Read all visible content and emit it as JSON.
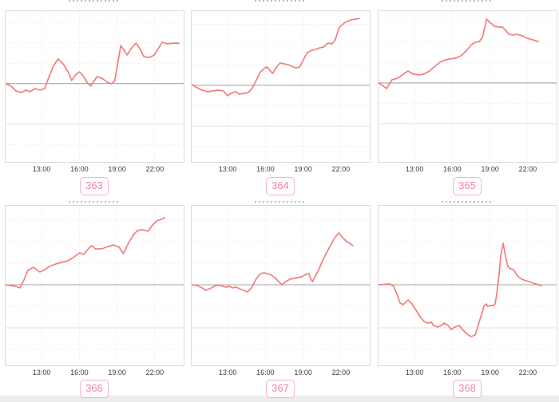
{
  "colors": {
    "line": "#f47d7d",
    "zero_line": "#a3a3a3",
    "grid": "#e9e9e9",
    "grid_solid": "#e2e2e2",
    "plot_border": "#dcdcdc",
    "tick_label": "#3b3b3b",
    "badge_text": "#ee86a4",
    "badge_border": "#f4b3c6",
    "bottom_strip": "#ececec"
  },
  "x_ticks": {
    "labels": [
      "13:00",
      "16:00",
      "19:00",
      "22:00"
    ],
    "positions_pct": [
      20.5,
      41.5,
      62.5,
      83.5
    ]
  },
  "chart_data": [
    {
      "type": "line",
      "badge": "363",
      "title": "",
      "legend": "none",
      "x_tick_labels": [
        "13:00",
        "16:00",
        "19:00",
        "22:00"
      ],
      "baseline_pct": 48,
      "points_pct": [
        [
          0,
          48
        ],
        [
          3.1,
          49.7
        ],
        [
          5.8,
          52.9
        ],
        [
          8.9,
          54
        ],
        [
          11.2,
          52.4
        ],
        [
          13.8,
          53.4
        ],
        [
          16.5,
          51.3
        ],
        [
          19.2,
          52.4
        ],
        [
          21.9,
          51.3
        ],
        [
          24.1,
          44.4
        ],
        [
          26.8,
          36.5
        ],
        [
          29.5,
          31.7
        ],
        [
          32.6,
          35.4
        ],
        [
          35.3,
          40.7
        ],
        [
          37.1,
          46
        ],
        [
          39.3,
          42.3
        ],
        [
          41.5,
          40.2
        ],
        [
          43.8,
          43.4
        ],
        [
          46,
          47.6
        ],
        [
          47.8,
          49.7
        ],
        [
          51.3,
          43.4
        ],
        [
          54,
          44.4
        ],
        [
          57.1,
          47.1
        ],
        [
          59.4,
          48.1
        ],
        [
          61.2,
          46.6
        ],
        [
          64.7,
          22.8
        ],
        [
          66.5,
          25.9
        ],
        [
          68.3,
          29.1
        ],
        [
          70.5,
          24.9
        ],
        [
          73.2,
          21.2
        ],
        [
          75.4,
          24.9
        ],
        [
          77.7,
          30.2
        ],
        [
          80.8,
          30.7
        ],
        [
          83.5,
          29.1
        ],
        [
          85.7,
          24.9
        ],
        [
          87.9,
          20.6
        ],
        [
          90.6,
          21.7
        ],
        [
          94.2,
          21.2
        ],
        [
          97.3,
          21.2
        ]
      ]
    },
    {
      "type": "line",
      "badge": "364",
      "title": "",
      "legend": "none",
      "x_tick_labels": [
        "13:00",
        "16:00",
        "19:00",
        "22:00"
      ],
      "baseline_pct": 49.2,
      "points_pct": [
        [
          0,
          48.7
        ],
        [
          3.1,
          50.8
        ],
        [
          5.8,
          52.4
        ],
        [
          8.9,
          53.4
        ],
        [
          12.1,
          52.9
        ],
        [
          14.7,
          52.4
        ],
        [
          17.9,
          52.9
        ],
        [
          20.1,
          56.1
        ],
        [
          22.8,
          54
        ],
        [
          24.6,
          53.4
        ],
        [
          26.8,
          55
        ],
        [
          29.5,
          54.5
        ],
        [
          31.7,
          54
        ],
        [
          33.9,
          51.3
        ],
        [
          36.2,
          46
        ],
        [
          38.4,
          40.7
        ],
        [
          40.6,
          38.1
        ],
        [
          42.4,
          37
        ],
        [
          44.2,
          39.7
        ],
        [
          45.5,
          41.3
        ],
        [
          47.3,
          37.6
        ],
        [
          49.6,
          34.4
        ],
        [
          51.8,
          34.9
        ],
        [
          54,
          35.4
        ],
        [
          56.2,
          36.5
        ],
        [
          58.5,
          37.6
        ],
        [
          60.7,
          37
        ],
        [
          63,
          31.7
        ],
        [
          64.9,
          27.5
        ],
        [
          67.4,
          25.9
        ],
        [
          69.6,
          25.4
        ],
        [
          71.9,
          24.3
        ],
        [
          74.1,
          23.8
        ],
        [
          75.9,
          21.7
        ],
        [
          77.2,
          21.2
        ],
        [
          78.6,
          21.7
        ],
        [
          80.4,
          19.6
        ],
        [
          83,
          10.6
        ],
        [
          86.2,
          7.4
        ],
        [
          89.3,
          5.8
        ],
        [
          92,
          5.3
        ],
        [
          94.2,
          4.8
        ]
      ]
    },
    {
      "type": "line",
      "badge": "365",
      "title": "",
      "legend": "none",
      "x_tick_labels": [
        "13:00",
        "16:00",
        "19:00",
        "22:00"
      ],
      "baseline_pct": 47.6,
      "points_pct": [
        [
          0,
          47.6
        ],
        [
          2.2,
          49.2
        ],
        [
          4.5,
          51.3
        ],
        [
          7.6,
          45.5
        ],
        [
          10.7,
          44.4
        ],
        [
          13.4,
          42.3
        ],
        [
          16.5,
          39.7
        ],
        [
          19.6,
          41.8
        ],
        [
          22.8,
          42.3
        ],
        [
          25.4,
          41.8
        ],
        [
          28.6,
          39.7
        ],
        [
          31.3,
          37
        ],
        [
          34.4,
          33.9
        ],
        [
          37.5,
          32.3
        ],
        [
          40.2,
          31.7
        ],
        [
          43.3,
          31.2
        ],
        [
          46.4,
          29.6
        ],
        [
          49.1,
          26.5
        ],
        [
          52.2,
          22.2
        ],
        [
          54.5,
          20.6
        ],
        [
          56.7,
          20.1
        ],
        [
          58.5,
          16.9
        ],
        [
          60.7,
          5.3
        ],
        [
          63,
          7.9
        ],
        [
          65.2,
          10.1
        ],
        [
          67.4,
          10.6
        ],
        [
          69.6,
          10.6
        ],
        [
          71,
          12.2
        ],
        [
          73.2,
          15.3
        ],
        [
          75.4,
          15.9
        ],
        [
          77.7,
          15.3
        ],
        [
          80.8,
          16.4
        ],
        [
          83.5,
          18
        ],
        [
          86.6,
          19
        ],
        [
          89.7,
          20.1
        ]
      ]
    },
    {
      "type": "line",
      "badge": "366",
      "title": "",
      "legend": "none",
      "x_tick_labels": [
        "13:00",
        "16:00",
        "19:00",
        "22:00"
      ],
      "baseline_pct": 49.5,
      "points_pct": [
        [
          0,
          49.5
        ],
        [
          5.8,
          50.5
        ],
        [
          8,
          51.5
        ],
        [
          10.3,
          46.5
        ],
        [
          12.5,
          40.5
        ],
        [
          15.6,
          38.5
        ],
        [
          19.2,
          41.5
        ],
        [
          21.4,
          40.5
        ],
        [
          24.6,
          38
        ],
        [
          28.1,
          36.5
        ],
        [
          31.3,
          35.5
        ],
        [
          34.8,
          34.5
        ],
        [
          38,
          32.5
        ],
        [
          41.5,
          29.5
        ],
        [
          43.8,
          30.5
        ],
        [
          46.9,
          26.5
        ],
        [
          48.2,
          25
        ],
        [
          50.4,
          27
        ],
        [
          54,
          27
        ],
        [
          57.6,
          25.5
        ],
        [
          60.7,
          24.5
        ],
        [
          63.8,
          26
        ],
        [
          66.1,
          30
        ],
        [
          69.2,
          23
        ],
        [
          71.9,
          18
        ],
        [
          74.1,
          15.5
        ],
        [
          77.2,
          15
        ],
        [
          79.9,
          16
        ],
        [
          82.6,
          12
        ],
        [
          84.8,
          9.5
        ],
        [
          87.5,
          8.5
        ],
        [
          89.3,
          7.5
        ]
      ]
    },
    {
      "type": "line",
      "badge": "367",
      "title": "",
      "legend": "none",
      "x_tick_labels": [
        "13:00",
        "16:00",
        "19:00",
        "22:00"
      ],
      "baseline_pct": 49.5,
      "points_pct": [
        [
          0,
          49.5
        ],
        [
          3.1,
          50
        ],
        [
          6,
          51.5
        ],
        [
          8,
          53
        ],
        [
          11,
          51.5
        ],
        [
          13.5,
          50
        ],
        [
          15.7,
          49.8
        ],
        [
          17,
          50.3
        ],
        [
          19.3,
          51
        ],
        [
          21,
          50.5
        ],
        [
          23.3,
          51.5
        ],
        [
          24.7,
          50.8
        ],
        [
          26.9,
          52
        ],
        [
          29.1,
          53
        ],
        [
          31.4,
          54
        ],
        [
          33.6,
          51.5
        ],
        [
          35.9,
          46.5
        ],
        [
          38.1,
          43
        ],
        [
          40.4,
          42
        ],
        [
          42.6,
          42.5
        ],
        [
          44.8,
          43.5
        ],
        [
          47.1,
          45.5
        ],
        [
          49.3,
          48
        ],
        [
          50.7,
          49.5
        ],
        [
          52.9,
          47.5
        ],
        [
          55.2,
          46
        ],
        [
          57.4,
          45.5
        ],
        [
          59.6,
          45
        ],
        [
          61.9,
          44.5
        ],
        [
          64.1,
          43
        ],
        [
          65.9,
          42.5
        ],
        [
          66.8,
          45.5
        ],
        [
          67.9,
          47.5
        ],
        [
          71.4,
          40
        ],
        [
          74.1,
          33
        ],
        [
          77.2,
          26.5
        ],
        [
          80.4,
          20
        ],
        [
          82.6,
          17
        ],
        [
          84.8,
          20
        ],
        [
          87.1,
          22.5
        ],
        [
          89.3,
          24
        ],
        [
          90.6,
          25
        ]
      ]
    },
    {
      "type": "line",
      "badge": "368",
      "title": "",
      "legend": "none",
      "x_tick_labels": [
        "13:00",
        "16:00",
        "19:00",
        "22:00"
      ],
      "baseline_pct": 49.5,
      "points_pct": [
        [
          0,
          49.5
        ],
        [
          6.3,
          49
        ],
        [
          8.5,
          50.5
        ],
        [
          10.8,
          56.5
        ],
        [
          12.1,
          61
        ],
        [
          13.9,
          62
        ],
        [
          15.2,
          60.5
        ],
        [
          16.6,
          59
        ],
        [
          18.8,
          61.5
        ],
        [
          21.1,
          65.5
        ],
        [
          23.3,
          69.5
        ],
        [
          25.6,
          72.5
        ],
        [
          27.4,
          73.5
        ],
        [
          29.6,
          73
        ],
        [
          30.9,
          75
        ],
        [
          33.2,
          76
        ],
        [
          35.4,
          75
        ],
        [
          36.8,
          73.5
        ],
        [
          39,
          75
        ],
        [
          40.8,
          77.5
        ],
        [
          43,
          76
        ],
        [
          45.3,
          75
        ],
        [
          47.5,
          78
        ],
        [
          49.8,
          80.5
        ],
        [
          52,
          82
        ],
        [
          54.3,
          81
        ],
        [
          55.6,
          76.5
        ],
        [
          57,
          71
        ],
        [
          58.3,
          66.5
        ],
        [
          59.2,
          63
        ],
        [
          60.5,
          61.5
        ],
        [
          61.4,
          63
        ],
        [
          63.2,
          62.5
        ],
        [
          64.6,
          62.5
        ],
        [
          65.5,
          61.5
        ],
        [
          66.4,
          55
        ],
        [
          67.7,
          43
        ],
        [
          68.6,
          31.5
        ],
        [
          70,
          23.5
        ],
        [
          71.3,
          31.5
        ],
        [
          72.6,
          38
        ],
        [
          74,
          39.5
        ],
        [
          75.8,
          40
        ],
        [
          78,
          44
        ],
        [
          80.3,
          46
        ],
        [
          83,
          47
        ],
        [
          85.7,
          48
        ],
        [
          88.3,
          49
        ],
        [
          91.5,
          50
        ]
      ]
    }
  ]
}
